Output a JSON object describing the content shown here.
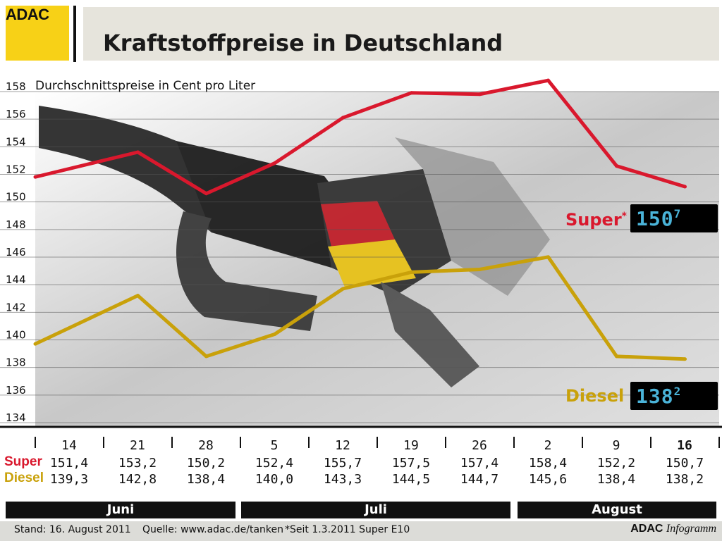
{
  "header": {
    "logo": "ADAC",
    "title": "Kraftstoffpreise in Deutschland"
  },
  "chart_data": {
    "type": "line",
    "subtitle": "Durchschnittspreise in Cent pro Liter",
    "ylim": [
      134,
      158
    ],
    "yticks": [
      158,
      156,
      154,
      152,
      150,
      148,
      146,
      144,
      142,
      140,
      138,
      136,
      134
    ],
    "grid": true,
    "x": [
      "14",
      "21",
      "28",
      "5",
      "12",
      "19",
      "26",
      "2",
      "9",
      "16"
    ],
    "highlight_index": 9,
    "series": [
      {
        "name": "Super",
        "color": "#d9182d",
        "values": [
          151.4,
          153.2,
          150.2,
          152.4,
          155.7,
          157.5,
          157.4,
          158.4,
          152.2,
          150.7
        ],
        "values_text": [
          "151,4",
          "153,2",
          "150,2",
          "152,4",
          "155,7",
          "157,5",
          "157,4",
          "158,4",
          "152,2",
          "150,7"
        ]
      },
      {
        "name": "Diesel",
        "color": "#c9a10a",
        "values": [
          139.3,
          142.8,
          138.4,
          140.0,
          143.3,
          144.5,
          144.7,
          145.6,
          138.4,
          138.2
        ],
        "values_text": [
          "139,3",
          "142,8",
          "138,4",
          "140,0",
          "143,3",
          "144,5",
          "144,7",
          "145,6",
          "138,4",
          "138,2"
        ]
      }
    ],
    "months": [
      "Juni",
      "Juli",
      "August"
    ]
  },
  "labels": {
    "super": "Super",
    "super_asterisk": "*",
    "diesel": "Diesel"
  },
  "displays": {
    "super_main": "150",
    "super_sub": "7",
    "diesel_main": "138",
    "diesel_sub": "2"
  },
  "footer": {
    "stand": "Stand: 16. August 2011",
    "quelle": "Quelle: www.adac.de/tanken",
    "note": "*Seit 1.3.2011 Super E10",
    "credit_bold": "ADAC",
    "credit_italic": "Infogramm"
  }
}
